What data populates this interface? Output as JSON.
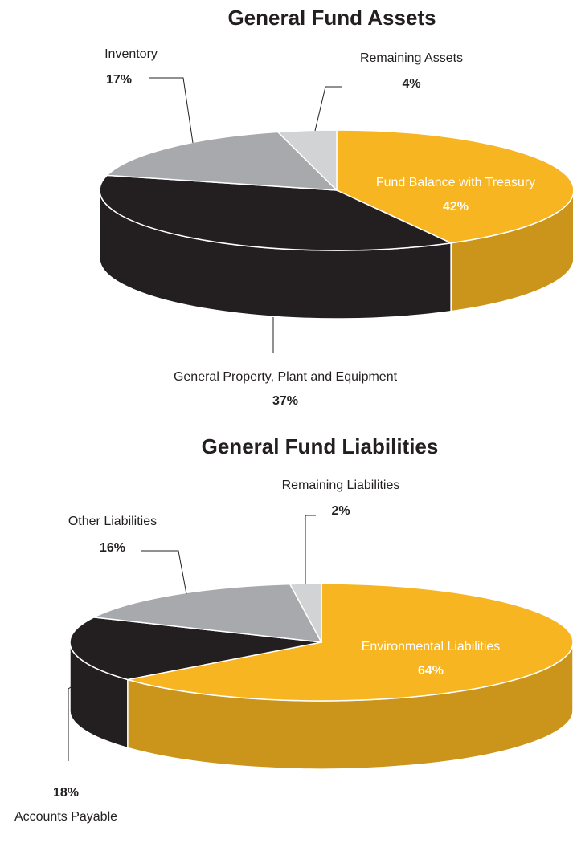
{
  "chart_data": [
    {
      "type": "pie3d",
      "title": "General Fund Assets",
      "categories": [
        "Fund Balance with Treasury",
        "General Property, Plant and Equipment",
        "Inventory",
        "Remaining Assets"
      ],
      "values": [
        42,
        37,
        17,
        4
      ],
      "value_labels": [
        "42%",
        "37%",
        "17%",
        "4%"
      ],
      "colors": [
        "#f7b521",
        "#231f20",
        "#a7a9ac",
        "#d1d3d4"
      ]
    },
    {
      "type": "pie3d",
      "title": "General Fund Liabilities",
      "categories": [
        "Environmental Liabilities",
        "Accounts Payable",
        "Other Liabilities",
        "Remaining Liabilities"
      ],
      "values": [
        64,
        18,
        16,
        2
      ],
      "value_labels": [
        "64%",
        "18%",
        "16%",
        "2%"
      ],
      "colors": [
        "#f7b521",
        "#231f20",
        "#a7a9ac",
        "#d1d3d4"
      ]
    }
  ]
}
